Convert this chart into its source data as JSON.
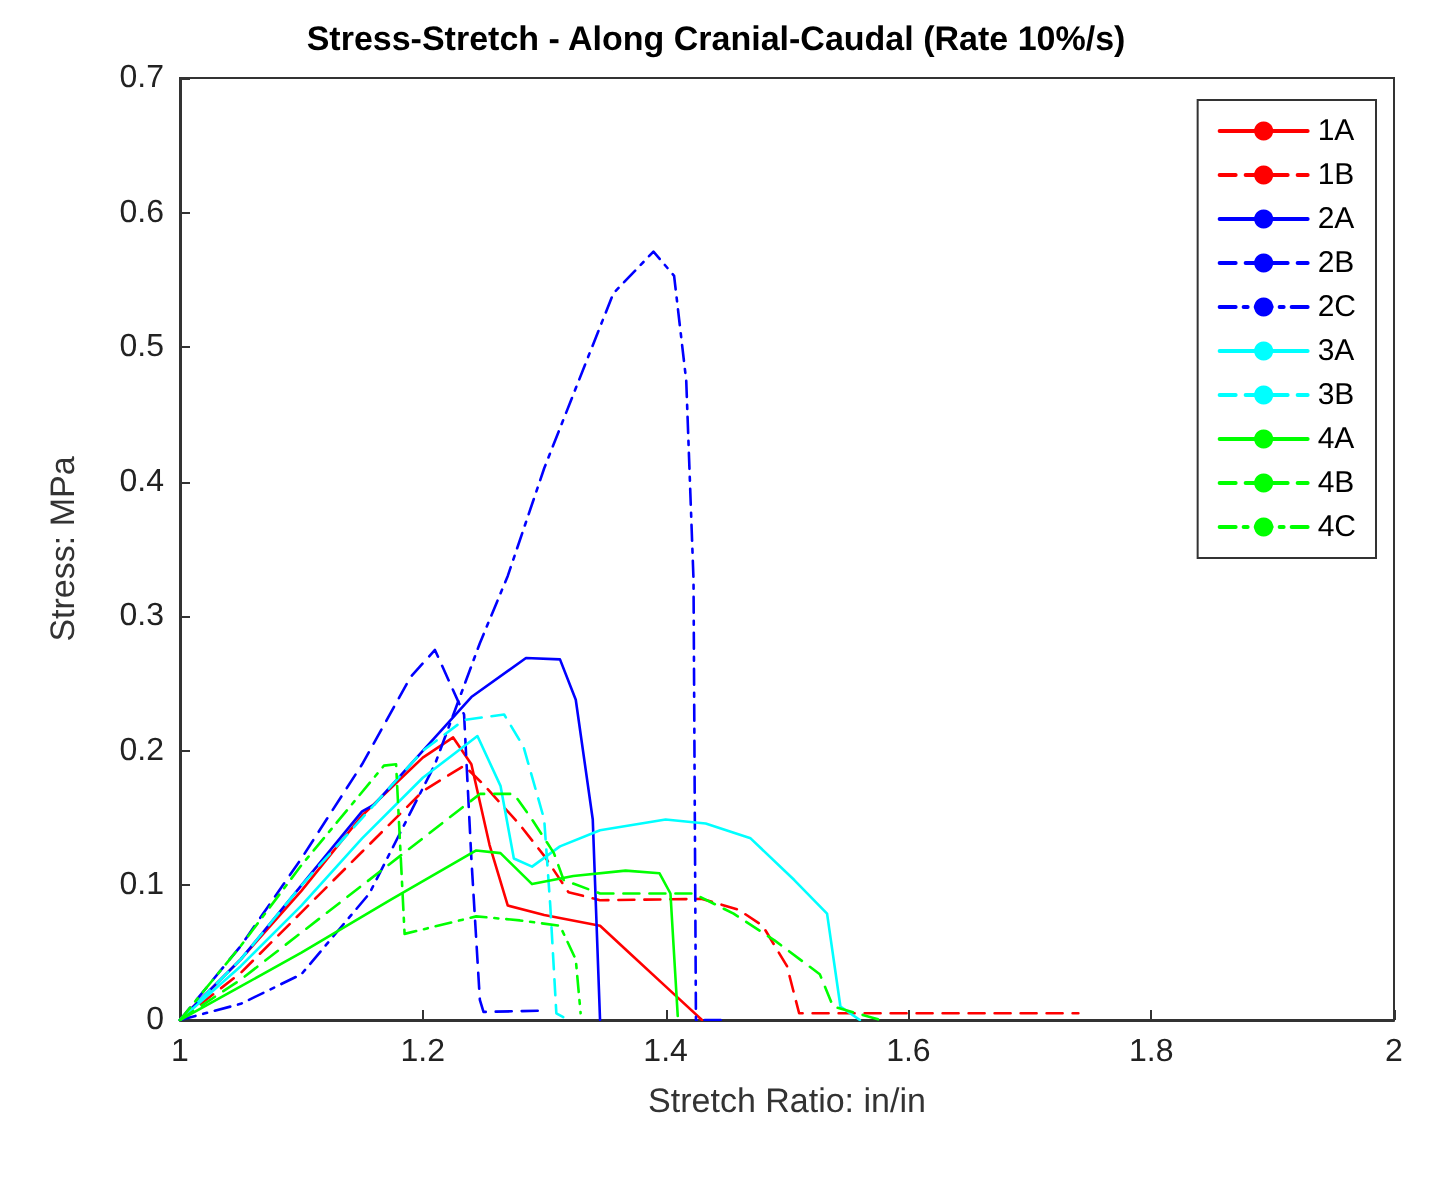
{
  "chart_data": {
    "type": "line",
    "title": "Stress-Stretch - Along Cranial-Caudal (Rate 10%/s)",
    "xlabel": "Stretch Ratio: in/in",
    "ylabel": "Stress: MPa",
    "xlim": [
      1,
      2
    ],
    "xticks": [
      1,
      1.2,
      1.4,
      1.6,
      1.8,
      2
    ],
    "ylim": [
      0,
      0.7
    ],
    "yticks": [
      0,
      0.1,
      0.2,
      0.3,
      0.4,
      0.5,
      0.6,
      0.7
    ],
    "grid": false,
    "legend": "top right",
    "marker": "none",
    "series": [
      {
        "name": "1A",
        "color": "#ff0000",
        "line_style": "solid",
        "x": [
          1,
          1.05,
          1.1,
          1.15,
          1.2,
          1.225,
          1.24,
          1.255,
          1.27,
          1.3,
          1.346,
          1.37,
          1.4,
          1.43
        ],
        "values": [
          0,
          0.045,
          0.096,
          0.152,
          0.195,
          0.21,
          0.19,
          0.13,
          0.085,
          0.078,
          0.07,
          0.05,
          0.025,
          0
        ]
      },
      {
        "name": "1B",
        "color": "#ff0000",
        "line_style": "dashed",
        "x": [
          1,
          1.05,
          1.1,
          1.15,
          1.2,
          1.234,
          1.25,
          1.28,
          1.3,
          1.32,
          1.346,
          1.43,
          1.46,
          1.48,
          1.5,
          1.51,
          1.55,
          1.74
        ],
        "values": [
          0,
          0.035,
          0.08,
          0.125,
          0.17,
          0.189,
          0.175,
          0.145,
          0.122,
          0.095,
          0.089,
          0.09,
          0.082,
          0.07,
          0.04,
          0.005,
          0.005,
          0.005
        ]
      },
      {
        "name": "2A",
        "color": "#0000ff",
        "line_style": "solid",
        "x": [
          1,
          1.05,
          1.1,
          1.15,
          1.16,
          1.2,
          1.24,
          1.285,
          1.313,
          1.326,
          1.34,
          1.346
        ],
        "values": [
          0,
          0.045,
          0.1,
          0.155,
          0.16,
          0.2,
          0.24,
          0.269,
          0.268,
          0.238,
          0.149,
          0
        ]
      },
      {
        "name": "2B",
        "color": "#0000ff",
        "line_style": "dashed",
        "x": [
          1,
          1.05,
          1.1,
          1.15,
          1.19,
          1.21,
          1.234,
          1.24,
          1.247,
          1.25,
          1.3
        ],
        "values": [
          0,
          0.055,
          0.12,
          0.19,
          0.255,
          0.275,
          0.227,
          0.12,
          0.015,
          0.006,
          0.007
        ]
      },
      {
        "name": "2C",
        "color": "#0000ff",
        "line_style": "dashdot",
        "x": [
          1,
          1.05,
          1.1,
          1.156,
          1.21,
          1.247,
          1.27,
          1.3,
          1.335,
          1.357,
          1.39,
          1.407,
          1.417,
          1.423,
          1.425,
          1.45
        ],
        "values": [
          0,
          0.012,
          0.034,
          0.094,
          0.19,
          0.28,
          0.33,
          0.41,
          0.49,
          0.54,
          0.571,
          0.553,
          0.475,
          0.327,
          0,
          0
        ]
      },
      {
        "name": "3A",
        "color": "#00ffff",
        "line_style": "solid",
        "x": [
          1,
          1.05,
          1.1,
          1.15,
          1.2,
          1.245,
          1.264,
          1.275,
          1.29,
          1.313,
          1.346,
          1.4,
          1.433,
          1.47,
          1.506,
          1.533,
          1.544,
          1.56
        ],
        "values": [
          0,
          0.04,
          0.085,
          0.135,
          0.18,
          0.211,
          0.174,
          0.12,
          0.114,
          0.129,
          0.141,
          0.149,
          0.146,
          0.135,
          0.104,
          0.079,
          0.01,
          0
        ]
      },
      {
        "name": "3B",
        "color": "#00ffff",
        "line_style": "dashed",
        "x": [
          1,
          1.05,
          1.1,
          1.15,
          1.2,
          1.234,
          1.267,
          1.283,
          1.3,
          1.305,
          1.31,
          1.32
        ],
        "values": [
          0,
          0.045,
          0.1,
          0.15,
          0.2,
          0.223,
          0.227,
          0.203,
          0.149,
          0.085,
          0.005,
          0
        ]
      },
      {
        "name": "4A",
        "color": "#00ff00",
        "line_style": "solid",
        "x": [
          1,
          1.05,
          1.1,
          1.173,
          1.244,
          1.264,
          1.29,
          1.324,
          1.367,
          1.395,
          1.404,
          1.41
        ],
        "values": [
          0,
          0.025,
          0.05,
          0.089,
          0.126,
          0.124,
          0.101,
          0.107,
          0.111,
          0.109,
          0.094,
          0.003
        ]
      },
      {
        "name": "4B",
        "color": "#00ff00",
        "line_style": "dashed",
        "x": [
          1,
          1.05,
          1.1,
          1.15,
          1.2,
          1.247,
          1.275,
          1.29,
          1.308,
          1.316,
          1.346,
          1.423,
          1.456,
          1.49,
          1.527,
          1.538,
          1.577
        ],
        "values": [
          0,
          0.03,
          0.065,
          0.1,
          0.135,
          0.168,
          0.168,
          0.149,
          0.124,
          0.104,
          0.094,
          0.094,
          0.079,
          0.059,
          0.034,
          0.01,
          0
        ]
      },
      {
        "name": "4C",
        "color": "#00ff00",
        "line_style": "dashdot",
        "x": [
          1,
          1.05,
          1.1,
          1.168,
          1.178,
          1.185,
          1.244,
          1.28,
          1.313,
          1.326,
          1.33
        ],
        "values": [
          0,
          0.055,
          0.115,
          0.189,
          0.19,
          0.064,
          0.077,
          0.074,
          0.07,
          0.045,
          0.005
        ]
      }
    ]
  }
}
